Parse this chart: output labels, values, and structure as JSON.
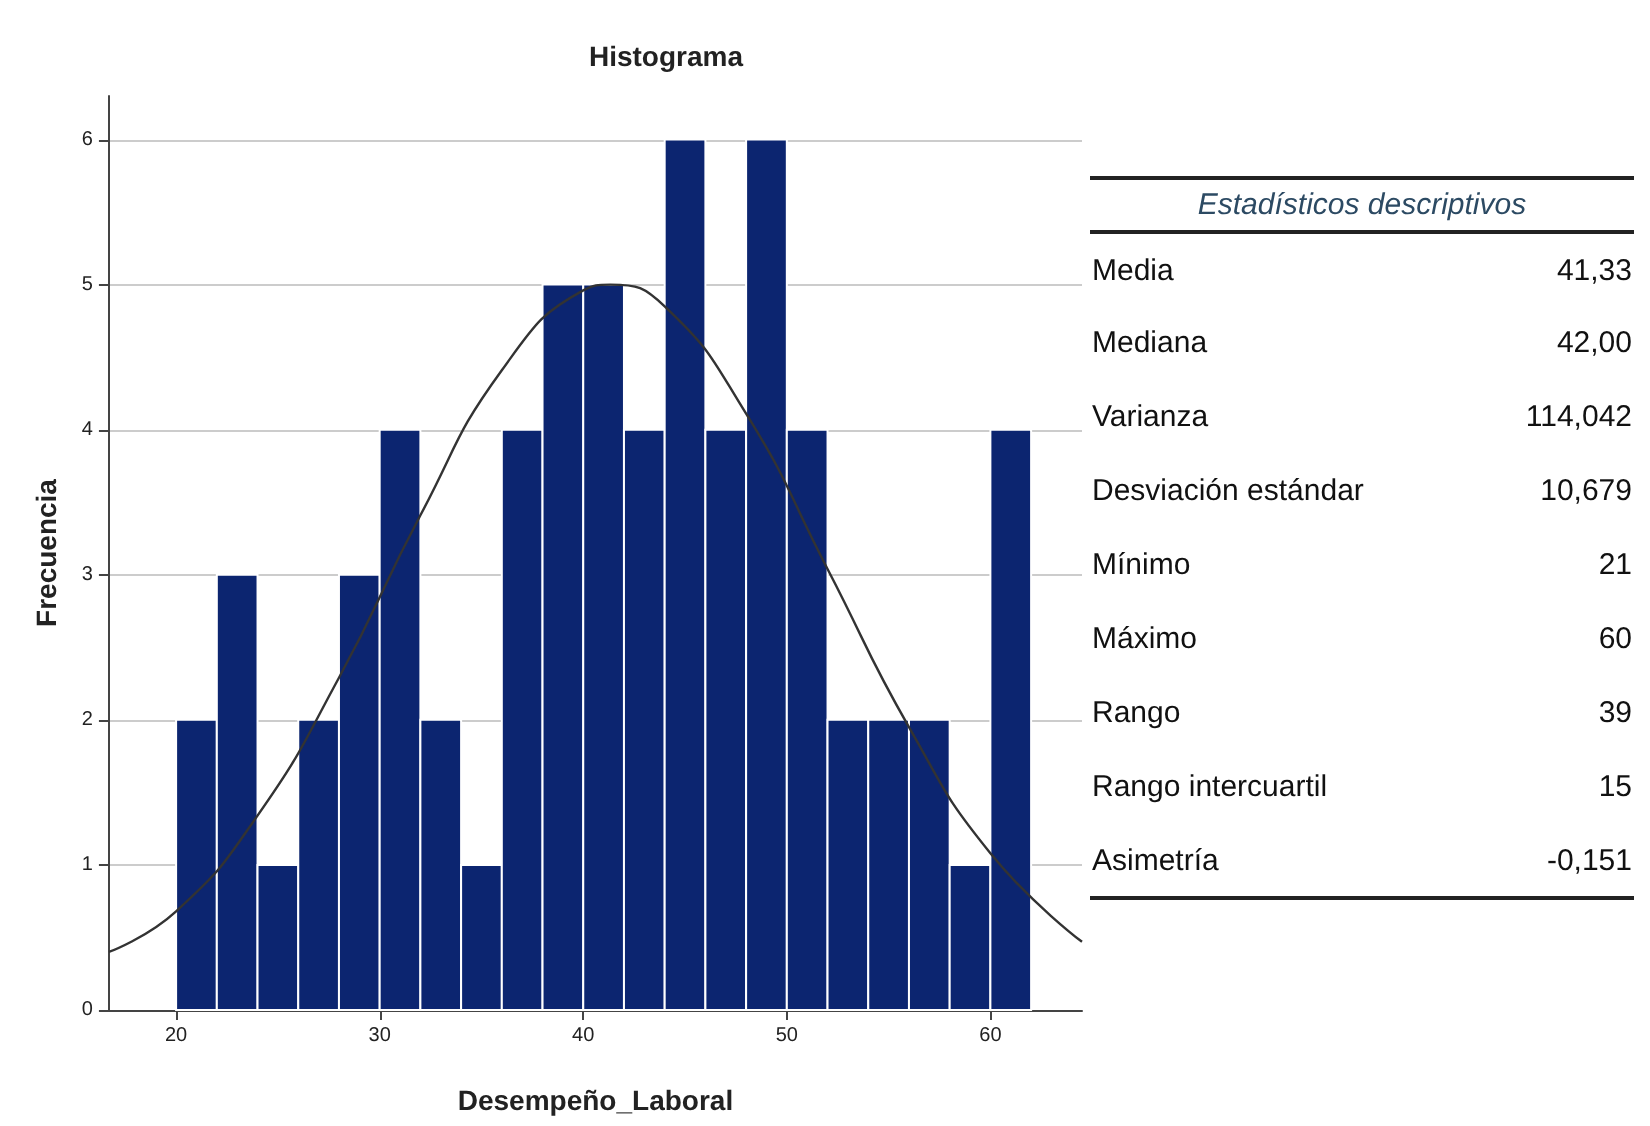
{
  "chart_data": [
    {
      "type": "histogram",
      "title": "Histograma",
      "xlabel": "Desempeño_Laboral",
      "ylabel": "Frecuencia",
      "bins": [
        20,
        22,
        24,
        26,
        28,
        30,
        32,
        34,
        36,
        38,
        40,
        42,
        44,
        46,
        48,
        50,
        52,
        54,
        56,
        58,
        60,
        62
      ],
      "values": [
        2,
        3,
        1,
        2,
        3,
        4,
        2,
        1,
        4,
        5,
        5,
        4,
        6,
        4,
        6,
        4,
        2,
        2,
        2,
        1,
        4
      ],
      "color": "#0c2570",
      "xlim": [
        16.7,
        64.5
      ],
      "xticks": [
        20,
        30,
        40,
        50,
        60
      ],
      "ylim": [
        0,
        6.3
      ],
      "yticks": [
        0,
        1,
        2,
        3,
        4,
        5,
        6
      ],
      "grid": "y",
      "series": [
        {
          "type": "line",
          "color": "#333333",
          "x": [
            16.7,
            20,
            24,
            28,
            32,
            36,
            40,
            41.33,
            44,
            48,
            52,
            56,
            60,
            64.5
          ],
          "values": [
            0.4,
            0.68,
            1.34,
            2.29,
            3.41,
            4.41,
            4.96,
            5.0,
            4.85,
            4.11,
            3.04,
            1.95,
            1.08,
            0.47
          ]
        }
      ]
    },
    {
      "type": "other",
      "title": "Estadísticos descriptivos",
      "categories": [
        "Media",
        "Mediana",
        "Varianza",
        "Desviación estándar",
        "Mínimo",
        "Máximo",
        "Rango",
        "Rango intercuartil",
        "Asimetría"
      ],
      "value_labels": [
        "41,33",
        "42,00",
        "114,042",
        "10,679",
        "21",
        "60",
        "39",
        "15",
        "-0,151"
      ]
    }
  ]
}
